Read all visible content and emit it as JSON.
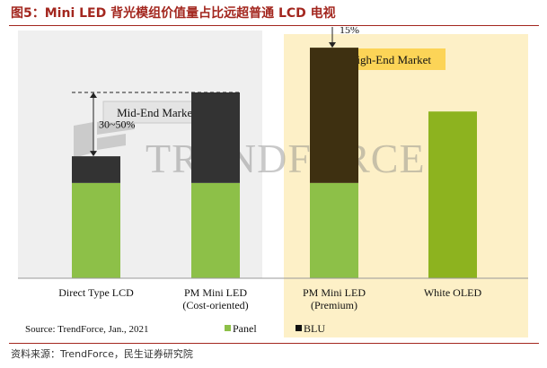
{
  "figure": {
    "title": "图5：Mini LED 背光模组价值量占比远超普通 LCD 电视",
    "footer": "资料来源：TrendForce，民生证券研究院"
  },
  "colors": {
    "panel": "#8dc048",
    "blu_standard": "#333333",
    "blu_premium": "#3e3011",
    "oled": "#8db31f",
    "mid_bg": "#efefef",
    "high_bg": "#fdf0c7",
    "high_box": "#fcd457",
    "title_red": "#a3271f"
  },
  "chart_data": {
    "type": "bar",
    "stacked": true,
    "categories": [
      [
        "Direct Type LCD"
      ],
      [
        "PM Mini LED",
        "(Cost-oriented)"
      ],
      [
        "PM Mini LED",
        "(Premium)"
      ],
      [
        "White OLED"
      ]
    ],
    "series": [
      {
        "name": "Panel",
        "values": [
          100,
          100,
          100,
          100
        ]
      },
      {
        "name": "BLU",
        "values": [
          28,
          95,
          142,
          75
        ]
      }
    ],
    "ylim": [
      0,
      260
    ],
    "groups": [
      {
        "label": "Mid-End Market",
        "categories": [
          0,
          1
        ]
      },
      {
        "label": "High-End Market",
        "categories": [
          2,
          3
        ]
      }
    ],
    "annotations": [
      {
        "text": "30~50%",
        "from": 128,
        "to": 195
      },
      {
        "text": "15%",
        "from": 242,
        "to": 280
      }
    ],
    "source": "Source: TrendForce, Jan., 2021",
    "legend_position": "bottom",
    "watermark": "TRENDFORCE"
  }
}
